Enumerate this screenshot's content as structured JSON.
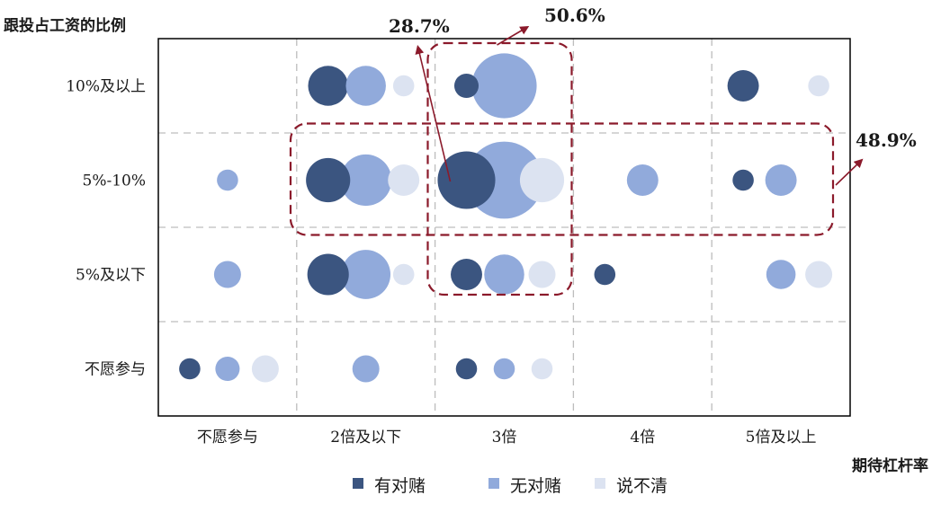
{
  "chart_data": {
    "type": "scatter",
    "subtype": "bubble",
    "ylabel": "跟投占工资的比例",
    "xlabel": "期待杠杆率",
    "x_categories": [
      "不愿参与",
      "2倍及以下",
      "3倍",
      "4倍",
      "5倍及以上"
    ],
    "y_categories": [
      "不愿参与",
      "5%及以下",
      "5%-10%",
      "10%及以上"
    ],
    "series": [
      {
        "name": "有对赌",
        "color": "#3b5580",
        "points": [
          {
            "x": "不愿参与",
            "y": "不愿参与",
            "size": 2
          },
          {
            "x": "2倍及以下",
            "y": "5%及以下",
            "size": 12
          },
          {
            "x": "2倍及以下",
            "y": "5%-10%",
            "size": 14
          },
          {
            "x": "2倍及以下",
            "y": "10%及以上",
            "size": 11
          },
          {
            "x": "3倍",
            "y": "不愿参与",
            "size": 2
          },
          {
            "x": "3倍",
            "y": "5%及以下",
            "size": 6
          },
          {
            "x": "3倍",
            "y": "5%-10%",
            "size": 26
          },
          {
            "x": "3倍",
            "y": "10%及以上",
            "size": 3
          },
          {
            "x": "4倍",
            "y": "5%及以下",
            "size": 2
          },
          {
            "x": "5倍及以上",
            "y": "5%-10%",
            "size": 2
          },
          {
            "x": "5倍及以上",
            "y": "10%及以上",
            "size": 6
          }
        ]
      },
      {
        "name": "无对赌",
        "color": "#91aadb",
        "points": [
          {
            "x": "不愿参与",
            "y": "不愿参与",
            "size": 3
          },
          {
            "x": "不愿参与",
            "y": "5%及以下",
            "size": 4
          },
          {
            "x": "不愿参与",
            "y": "5%-10%",
            "size": 2
          },
          {
            "x": "2倍及以下",
            "y": "不愿参与",
            "size": 4
          },
          {
            "x": "2倍及以下",
            "y": "5%及以下",
            "size": 18
          },
          {
            "x": "2倍及以下",
            "y": "5%-10%",
            "size": 20
          },
          {
            "x": "2倍及以下",
            "y": "10%及以上",
            "size": 11
          },
          {
            "x": "3倍",
            "y": "不愿参与",
            "size": 2
          },
          {
            "x": "3倍",
            "y": "5%及以下",
            "size": 11
          },
          {
            "x": "3倍",
            "y": "5%-10%",
            "size": 50
          },
          {
            "x": "3倍",
            "y": "10%及以上",
            "size": 34
          },
          {
            "x": "4倍",
            "y": "5%-10%",
            "size": 6
          },
          {
            "x": "5倍及以上",
            "y": "5%及以下",
            "size": 5
          },
          {
            "x": "5倍及以上",
            "y": "5%-10%",
            "size": 6
          }
        ]
      },
      {
        "name": "说不清",
        "color": "#dce3f1",
        "points": [
          {
            "x": "不愿参与",
            "y": "不愿参与",
            "size": 4
          },
          {
            "x": "2倍及以下",
            "y": "5%及以下",
            "size": 2
          },
          {
            "x": "2倍及以下",
            "y": "5%-10%",
            "size": 6
          },
          {
            "x": "2倍及以下",
            "y": "10%及以上",
            "size": 2
          },
          {
            "x": "3倍",
            "y": "不愿参与",
            "size": 2
          },
          {
            "x": "3倍",
            "y": "5%及以下",
            "size": 4
          },
          {
            "x": "3倍",
            "y": "5%-10%",
            "size": 14
          },
          {
            "x": "5倍及以上",
            "y": "5%及以下",
            "size": 4
          },
          {
            "x": "5倍及以上",
            "y": "10%及以上",
            "size": 2
          }
        ]
      }
    ],
    "annotations": [
      {
        "text": "28.7%",
        "target": "3倍 column"
      },
      {
        "text": "50.6%",
        "target": "3倍 × 5%及以上 region"
      },
      {
        "text": "48.9%",
        "target": "5%-10% row"
      }
    ],
    "highlight_color": "#8b1a2b",
    "grid": true,
    "legend_position": "bottom"
  }
}
